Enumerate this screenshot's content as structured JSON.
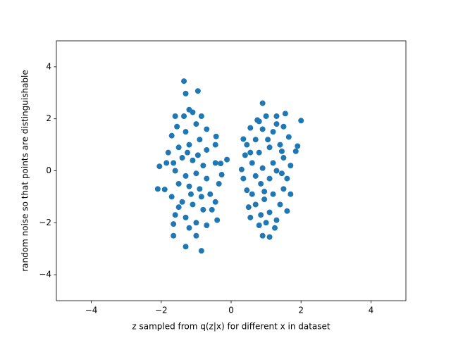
{
  "chart_data": {
    "type": "scatter",
    "xlabel": "z sampled from q(z|x) for different x in dataset",
    "ylabel": "random noise so that points are distinguishable",
    "color": "#1f77b4",
    "xlim": [
      -5,
      5
    ],
    "ylim": [
      -5,
      5
    ],
    "xticks": [
      {
        "value": -4,
        "label": "−4"
      },
      {
        "value": -2,
        "label": "−2"
      },
      0,
      2,
      4
    ],
    "yticks": [
      {
        "value": -4,
        "label": "−4"
      },
      {
        "value": -2,
        "label": "−2"
      },
      0,
      2,
      4
    ],
    "x": [
      -1.35,
      -1.3,
      -0.95,
      -1.6,
      -1.35,
      -0.85,
      -2.05,
      -1.65,
      -2.1,
      -1.9,
      -1.6,
      -1.65,
      -1.65,
      -1.3,
      -0.85,
      -1.0,
      -0.4,
      -0.45,
      -0.12,
      -0.27,
      -0.3,
      -0.45,
      -0.45,
      -0.43,
      -0.35,
      -1.2,
      -1.1,
      -1.7,
      -1.55,
      -1.3,
      -1.0,
      -0.7,
      -1.8,
      -1.5,
      -1.2,
      -0.9,
      -0.7,
      -1.4,
      -1.1,
      -0.8,
      -1.6,
      -1.3,
      -1.0,
      -0.7,
      -1.5,
      -1.2,
      -0.9,
      -0.6,
      -1.7,
      -1.4,
      -1.1,
      -0.8,
      -1.3,
      -1.0,
      -0.7,
      -1.2,
      -1.5,
      -0.55,
      -1.85,
      -1.25,
      -0.95,
      -1.15,
      -0.85,
      0.9,
      1.55,
      2.0,
      1.3,
      1.0,
      0.75,
      0.55,
      0.35,
      0.45,
      0.4,
      0.3,
      0.35,
      0.45,
      0.5,
      0.55,
      0.8,
      0.9,
      1.1,
      1.3,
      1.6,
      1.7,
      1.85,
      1.9,
      1.65,
      1.5,
      1.2,
      0.9,
      0.7,
      1.4,
      1.1,
      0.8,
      0.6,
      1.5,
      1.2,
      0.9,
      0.7,
      1.45,
      1.1,
      0.85,
      0.6,
      1.5,
      1.2,
      0.95,
      0.7,
      1.4,
      1.1,
      0.85,
      1.25,
      1.0,
      1.7,
      1.6,
      0.55,
      1.3,
      1.05,
      0.95,
      1.3,
      0.8,
      1.45
    ],
    "values": [
      3.45,
      2.97,
      3.07,
      2.1,
      2.1,
      2.1,
      0.17,
      0.3,
      -0.7,
      -0.72,
      -1.7,
      -2.05,
      -2.5,
      -2.92,
      -3.08,
      -2.5,
      -1.9,
      -1.2,
      0.43,
      -0.15,
      0.28,
      0.3,
      1.0,
      1.32,
      -0.5,
      2.35,
      2.25,
      1.35,
      1.7,
      1.5,
      1.8,
      1.6,
      0.7,
      0.9,
      1.0,
      1.2,
      0.8,
      0.5,
      0.4,
      0.2,
      0.0,
      -0.2,
      -0.1,
      -0.3,
      -0.5,
      -0.6,
      -0.7,
      -0.9,
      -1.0,
      -1.2,
      -1.3,
      -1.5,
      -1.8,
      -2.0,
      -2.1,
      -2.2,
      -1.4,
      -1.5,
      0.3,
      0.7,
      0.6,
      -0.9,
      -1.0,
      2.6,
      2.2,
      1.93,
      2.1,
      2.1,
      1.95,
      1.65,
      1.22,
      1.0,
      0.6,
      0.05,
      -0.3,
      -0.75,
      -1.4,
      -1.8,
      -2.1,
      -2.5,
      -2.55,
      -1.9,
      -1.55,
      -0.9,
      0.75,
      0.95,
      1.3,
      1.7,
      1.5,
      1.6,
      1.2,
      1.0,
      0.9,
      0.7,
      0.3,
      0.5,
      0.3,
      0.1,
      -0.2,
      -0.1,
      -0.3,
      -0.5,
      -0.9,
      -0.7,
      -0.9,
      -1.1,
      -1.3,
      -1.3,
      -1.6,
      -1.7,
      -2.2,
      -2.0,
      0.2,
      -0.3,
      0.7,
      1.8,
      1.2,
      -0.8,
      0.0,
      1.9,
      0.75
    ]
  }
}
